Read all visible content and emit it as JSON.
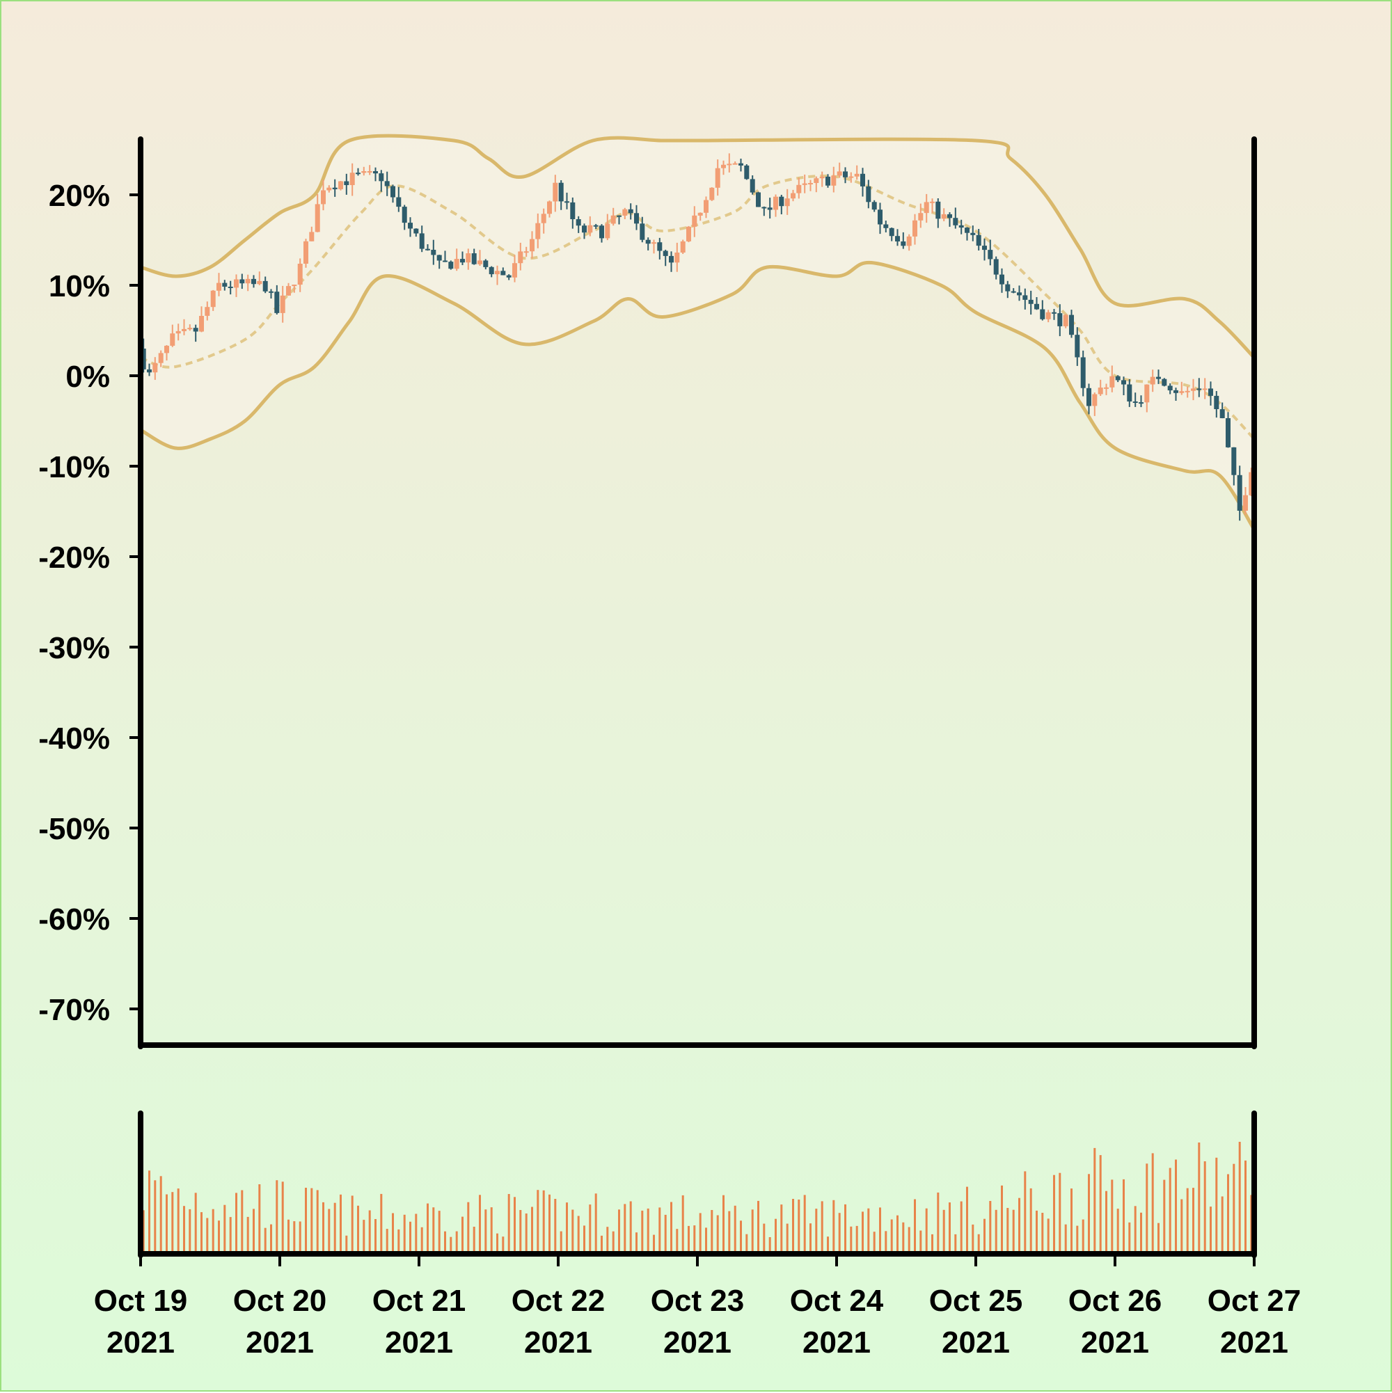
{
  "chart_data": {
    "type": "candlestick",
    "title": "",
    "xlabel": "",
    "ylabel": "",
    "y_format": "percent",
    "ylim": [
      -74,
      26
    ],
    "y_ticks": [
      "20%",
      "10%",
      "0%",
      "-10%",
      "-20%",
      "-30%",
      "-40%",
      "-50%",
      "-60%",
      "-70%"
    ],
    "x_ticks": [
      {
        "line1": "Oct 19",
        "line2": "2021"
      },
      {
        "line1": "Oct 20",
        "line2": "2021"
      },
      {
        "line1": "Oct 21",
        "line2": "2021"
      },
      {
        "line1": "Oct 22",
        "line2": "2021"
      },
      {
        "line1": "Oct 23",
        "line2": "2021"
      },
      {
        "line1": "Oct 24",
        "line2": "2021"
      },
      {
        "line1": "Oct 25",
        "line2": "2021"
      },
      {
        "line1": "Oct 26",
        "line2": "2021"
      },
      {
        "line1": "Oct 27",
        "line2": "2021"
      }
    ],
    "xlim": [
      "2021-10-19",
      "2021-10-27"
    ],
    "close_path": [
      [
        "2021-10-19T00:00",
        3
      ],
      [
        "2021-10-19T02:00",
        0
      ],
      [
        "2021-10-19T06:00",
        4
      ],
      [
        "2021-10-19T10:00",
        5
      ],
      [
        "2021-10-19T14:00",
        10
      ],
      [
        "2021-10-19T18:00",
        10
      ],
      [
        "2021-10-19T22:00",
        10
      ],
      [
        "2021-10-20T00:00",
        7
      ],
      [
        "2021-10-20T04:00",
        12
      ],
      [
        "2021-10-20T08:00",
        21
      ],
      [
        "2021-10-20T14:00",
        22
      ],
      [
        "2021-10-20T18:00",
        22
      ],
      [
        "2021-10-20T22:00",
        17
      ],
      [
        "2021-10-21T04:00",
        12
      ],
      [
        "2021-10-21T08:00",
        13
      ],
      [
        "2021-10-21T12:00",
        12
      ],
      [
        "2021-10-21T16:00",
        11
      ],
      [
        "2021-10-21T20:00",
        15
      ],
      [
        "2021-10-22T00:00",
        21
      ],
      [
        "2021-10-22T04:00",
        16
      ],
      [
        "2021-10-22T08:00",
        16
      ],
      [
        "2021-10-22T12:00",
        18
      ],
      [
        "2021-10-22T16:00",
        15
      ],
      [
        "2021-10-22T20:00",
        12
      ],
      [
        "2021-10-23T00:00",
        17
      ],
      [
        "2021-10-23T04:00",
        23
      ],
      [
        "2021-10-23T08:00",
        23
      ],
      [
        "2021-10-23T12:00",
        18
      ],
      [
        "2021-10-23T16:00",
        20
      ],
      [
        "2021-10-23T20:00",
        21
      ],
      [
        "2021-10-24T00:00",
        22
      ],
      [
        "2021-10-24T04:00",
        22
      ],
      [
        "2021-10-24T08:00",
        17
      ],
      [
        "2021-10-24T12:00",
        15
      ],
      [
        "2021-10-24T16:00",
        19
      ],
      [
        "2021-10-24T20:00",
        17
      ],
      [
        "2021-10-25T00:00",
        15
      ],
      [
        "2021-10-25T06:00",
        10
      ],
      [
        "2021-10-25T12:00",
        7
      ],
      [
        "2021-10-25T16:00",
        6
      ],
      [
        "2021-10-25T20:00",
        -3
      ],
      [
        "2021-10-26T00:00",
        0
      ],
      [
        "2021-10-26T04:00",
        -3
      ],
      [
        "2021-10-26T08:00",
        0
      ],
      [
        "2021-10-26T12:00",
        -2
      ],
      [
        "2021-10-26T16:00",
        -1
      ],
      [
        "2021-10-26T19:00",
        -5
      ],
      [
        "2021-10-26T22:00",
        -15
      ],
      [
        "2021-10-27T00:00",
        -10
      ]
    ],
    "band_upper": [
      [
        "2021-10-19T00:00",
        12
      ],
      [
        "2021-10-19T06:00",
        11
      ],
      [
        "2021-10-19T12:00",
        12
      ],
      [
        "2021-10-19T18:00",
        15
      ],
      [
        "2021-10-20T00:00",
        18
      ],
      [
        "2021-10-20T06:00",
        20
      ],
      [
        "2021-10-20T12:00",
        26
      ],
      [
        "2021-10-21T06:00",
        26
      ],
      [
        "2021-10-21T12:00",
        24
      ],
      [
        "2021-10-21T18:00",
        22
      ],
      [
        "2021-10-22T06:00",
        26
      ],
      [
        "2021-10-22T18:00",
        26
      ],
      [
        "2021-10-23T00:00",
        26
      ],
      [
        "2021-10-25T00:00",
        26
      ],
      [
        "2021-10-25T06:00",
        24
      ],
      [
        "2021-10-25T12:00",
        20
      ],
      [
        "2021-10-25T18:00",
        14
      ],
      [
        "2021-10-26T00:00",
        8
      ],
      [
        "2021-10-26T12:00",
        8.5
      ],
      [
        "2021-10-26T18:00",
        6
      ],
      [
        "2021-10-27T00:00",
        2
      ]
    ],
    "band_middle": [
      [
        "2021-10-19T00:00",
        2
      ],
      [
        "2021-10-19T06:00",
        1
      ],
      [
        "2021-10-19T18:00",
        4
      ],
      [
        "2021-10-20T00:00",
        8
      ],
      [
        "2021-10-20T06:00",
        12
      ],
      [
        "2021-10-20T14:00",
        18
      ],
      [
        "2021-10-20T20:00",
        21
      ],
      [
        "2021-10-21T06:00",
        18
      ],
      [
        "2021-10-21T18:00",
        13
      ],
      [
        "2021-10-22T06:00",
        16
      ],
      [
        "2021-10-22T12:00",
        18
      ],
      [
        "2021-10-22T18:00",
        16
      ],
      [
        "2021-10-23T06:00",
        18
      ],
      [
        "2021-10-23T12:00",
        21
      ],
      [
        "2021-10-24T00:00",
        22
      ],
      [
        "2021-10-24T12:00",
        19
      ],
      [
        "2021-10-25T00:00",
        16
      ],
      [
        "2021-10-25T12:00",
        9
      ],
      [
        "2021-10-25T18:00",
        5
      ],
      [
        "2021-10-26T00:00",
        0
      ],
      [
        "2021-10-26T12:00",
        -1
      ],
      [
        "2021-10-26T18:00",
        -3
      ],
      [
        "2021-10-27T00:00",
        -7
      ]
    ],
    "band_lower": [
      [
        "2021-10-19T00:00",
        -6
      ],
      [
        "2021-10-19T06:00",
        -8
      ],
      [
        "2021-10-19T12:00",
        -7
      ],
      [
        "2021-10-19T18:00",
        -5
      ],
      [
        "2021-10-20T00:00",
        -1
      ],
      [
        "2021-10-20T06:00",
        1
      ],
      [
        "2021-10-20T12:00",
        6
      ],
      [
        "2021-10-20T18:00",
        11
      ],
      [
        "2021-10-21T06:00",
        8
      ],
      [
        "2021-10-21T18:00",
        3.5
      ],
      [
        "2021-10-22T06:00",
        6
      ],
      [
        "2021-10-22T12:00",
        8.5
      ],
      [
        "2021-10-22T18:00",
        6.5
      ],
      [
        "2021-10-23T06:00",
        9
      ],
      [
        "2021-10-23T12:00",
        12
      ],
      [
        "2021-10-24T00:00",
        11
      ],
      [
        "2021-10-24T06:00",
        12.5
      ],
      [
        "2021-10-24T18:00",
        10
      ],
      [
        "2021-10-25T00:00",
        7
      ],
      [
        "2021-10-25T12:00",
        3
      ],
      [
        "2021-10-25T18:00",
        -3
      ],
      [
        "2021-10-26T00:00",
        -8
      ],
      [
        "2021-10-26T12:00",
        -10.5
      ],
      [
        "2021-10-26T18:00",
        -11
      ],
      [
        "2021-10-27T00:00",
        -17
      ]
    ],
    "volume_envelope": [
      [
        "2021-10-19T00:00",
        0.6
      ],
      [
        "2021-10-19T12:00",
        0.5
      ],
      [
        "2021-10-20T00:00",
        0.45
      ],
      [
        "2021-10-20T12:00",
        0.35
      ],
      [
        "2021-10-21T00:00",
        0.35
      ],
      [
        "2021-10-22T00:00",
        0.38
      ],
      [
        "2021-10-23T00:00",
        0.35
      ],
      [
        "2021-10-24T00:00",
        0.35
      ],
      [
        "2021-10-25T00:00",
        0.4
      ],
      [
        "2021-10-25T12:00",
        0.55
      ],
      [
        "2021-10-26T00:00",
        0.65
      ],
      [
        "2021-10-27T00:00",
        0.7
      ]
    ],
    "colors": {
      "up": "#f29e74",
      "down": "#2e5c6b",
      "band": "#d9b86b",
      "band_middle": "#e2c98c",
      "band_fill": "#f6f1e4",
      "volume": "#e8834a",
      "axis": "#000000"
    },
    "grid": false,
    "legend": "none"
  }
}
